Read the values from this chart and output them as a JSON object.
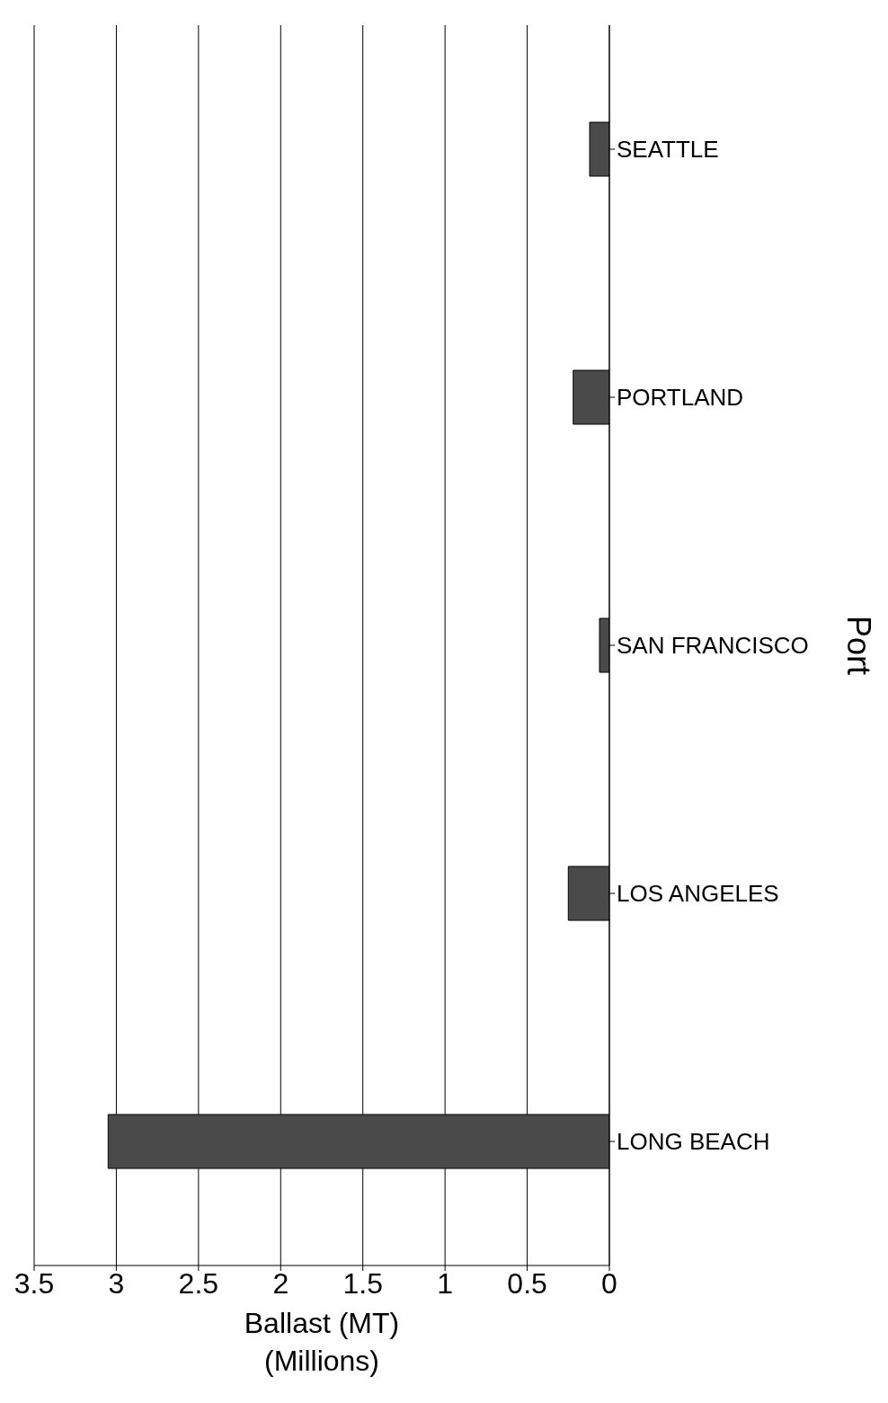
{
  "chart_data": {
    "type": "bar",
    "orientation": "horizontal",
    "xlabel": "Ballast (MT)\n(Millions)",
    "ylabel": "Port",
    "categories": [
      "SEATTLE",
      "PORTLAND",
      "SAN FRANCISCO",
      "LOS ANGELES",
      "LONG BEACH"
    ],
    "values": [
      0.12,
      0.22,
      0.06,
      0.25,
      3.05
    ],
    "color": "#4a4a4a",
    "xlim": [
      3.5,
      0
    ],
    "xticks": [
      0,
      0.5,
      1,
      1.5,
      2,
      2.5,
      3,
      3.5
    ],
    "grid": "x"
  }
}
